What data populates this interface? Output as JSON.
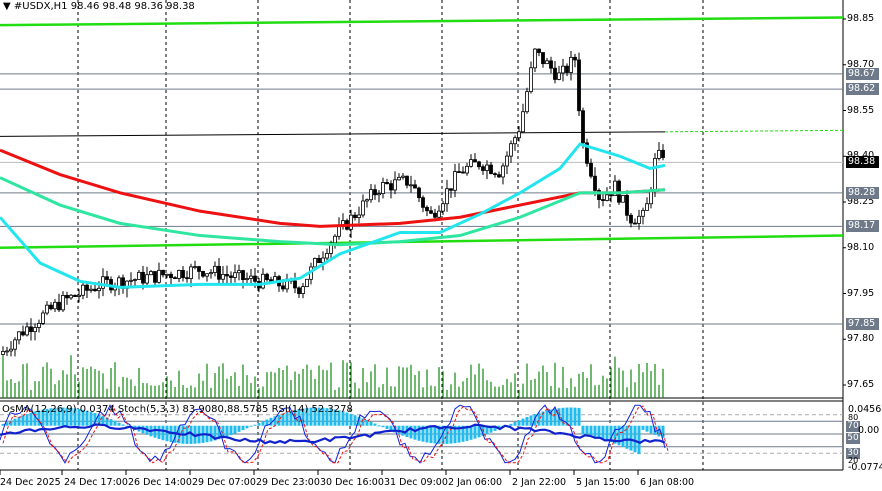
{
  "header": {
    "menu_arrow": "▼",
    "symbol": "#USDX,H1",
    "ohlc": "98.46 98.48 98.36 98.38"
  },
  "subwindow": {
    "indicators": "OsMA(12,26,9) 0.0374  Stoch(5,3,3) 83.9080,88.5785  RSI(14) 52.3278",
    "scale_top": "0.0456",
    "scale_bottom": "-0.0774",
    "scale_zero": "0.00",
    "level_80": "80",
    "level_20": "20",
    "tag_70": "70",
    "tag_50": "50",
    "tag_30": "30"
  },
  "price_axis": {
    "labels": [
      "98.85",
      "98.70",
      "98.55",
      "98.40",
      "98.25",
      "98.10",
      "97.95",
      "97.80",
      "97.65"
    ],
    "tags": [
      {
        "value": "98.67",
        "current": false
      },
      {
        "value": "98.62",
        "current": false
      },
      {
        "value": "98.38",
        "current": true
      },
      {
        "value": "98.28",
        "current": false
      },
      {
        "value": "98.17",
        "current": false
      },
      {
        "value": "97.85",
        "current": false
      }
    ]
  },
  "time_axis": {
    "labels": [
      "24 Dec 2025",
      "24 Dec 17:00",
      "26 Dec 14:00",
      "29 Dec 07:00",
      "29 Dec 23:00",
      "30 Dec 16:00",
      "31 Dec 09:00",
      "2 Jan 06:00",
      "2 Jan 22:00",
      "5 Jan 15:00",
      "6 Jan 08:00"
    ]
  },
  "colors": {
    "bull_candle": "#ffffff",
    "bear_candle": "#000000",
    "ema_fast": "#22e5ee",
    "ema_mid": "#2ee6a0",
    "ema_slow": "#ee1111",
    "channel": "#22dd11",
    "volume": "#118811",
    "osma": "#22bbee",
    "stoch_main": "#1122dd",
    "stoch_signal": "#ee1111",
    "rsi": "#1122cc",
    "level_line": "#6e7a8a"
  },
  "chart_data": {
    "type": "candlestick",
    "title": "#USDX,H1",
    "ohlc_last": {
      "open": 98.46,
      "high": 98.48,
      "low": 98.36,
      "close": 98.38
    },
    "x": [
      "24 Dec 2025",
      "24 Dec 17:00",
      "26 Dec 14:00",
      "29 Dec 07:00",
      "29 Dec 23:00",
      "30 Dec 16:00",
      "31 Dec 09:00",
      "2 Jan 06:00",
      "2 Jan 22:00",
      "5 Jan 15:00",
      "6 Jan 08:00"
    ],
    "approx_close_at_ticks": [
      97.82,
      97.95,
      97.98,
      98.02,
      97.98,
      98.15,
      98.25,
      98.35,
      98.72,
      98.25,
      98.42
    ],
    "y_ticks": [
      98.85,
      98.7,
      98.55,
      98.4,
      98.25,
      98.1,
      97.95,
      97.8,
      97.65
    ],
    "ylim": [
      97.6,
      98.9
    ],
    "horizontal_levels": [
      98.67,
      98.62,
      98.28,
      98.17,
      97.85
    ],
    "current_price": 98.38,
    "moving_averages": [
      {
        "name": "fast EMA (cyan)",
        "color": "#22e5ee",
        "end_value": 98.37
      },
      {
        "name": "mid EMA (teal)",
        "color": "#2ee6a0",
        "end_value": 98.28
      },
      {
        "name": "slow EMA (red)",
        "color": "#ee1111",
        "end_value": 98.28
      }
    ],
    "channel_lines": [
      {
        "name": "upper channel",
        "start": 98.82,
        "end": 98.86
      },
      {
        "name": "middle channel",
        "start": 98.46,
        "end": 98.48
      },
      {
        "name": "lower channel",
        "start": 98.1,
        "end": 98.14
      }
    ],
    "indicators": {
      "OsMA(12,26,9)": 0.0374,
      "Stoch(5,3,3)": [
        83.908,
        88.5785
      ],
      "RSI(14)": 52.3278,
      "sub_range": [
        -0.0774,
        0.0456
      ],
      "levels": [
        80,
        70,
        50,
        30,
        20
      ]
    },
    "xlabel": "",
    "ylabel": "",
    "grid": false
  }
}
